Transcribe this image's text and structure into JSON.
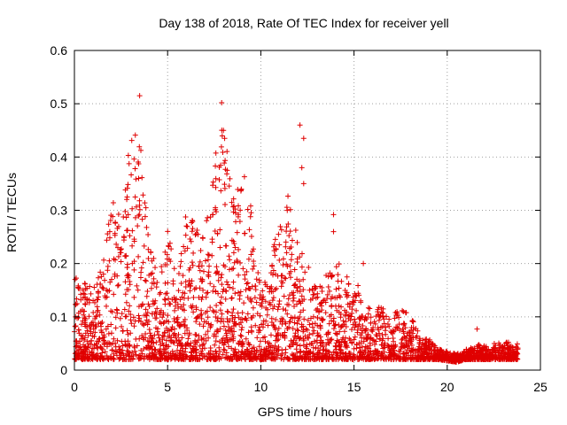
{
  "chart_data": {
    "type": "scatter",
    "title": "Day 138 of 2018, Rate Of TEC Index for receiver yell",
    "xlabel": "GPS time / hours",
    "ylabel": "ROTI / TECUs",
    "xlim": [
      0,
      25
    ],
    "ylim": [
      0,
      0.6
    ],
    "xticks": [
      0,
      5,
      10,
      15,
      20,
      25
    ],
    "xtick_labels": [
      "0",
      "5",
      "10",
      "15",
      "20",
      "25"
    ],
    "yticks": [
      0,
      0.1,
      0.2,
      0.3,
      0.4,
      0.5,
      0.6
    ],
    "ytick_labels": [
      "0",
      "0.1",
      "0.2",
      "0.3",
      "0.4",
      "0.5",
      "0.6"
    ],
    "grid": true,
    "marker": "+",
    "marker_color": "#e00000",
    "series": [
      {
        "name": "ROTI",
        "envelope": {
          "x": [
            0,
            0.5,
            1,
            1.5,
            2,
            2.5,
            3,
            3.2,
            3.5,
            4,
            4.5,
            5,
            5.5,
            6,
            6.5,
            7,
            7.5,
            7.8,
            8,
            8.5,
            9,
            9.5,
            10,
            10.5,
            11,
            11.5,
            12,
            12.5,
            13,
            13.5,
            14,
            14.5,
            15,
            15.5,
            16,
            16.5,
            17,
            17.5,
            18,
            18.5,
            19,
            19.5,
            20,
            20.5,
            21,
            21.5,
            22,
            22.5,
            23,
            23.5,
            23.8
          ],
          "y_max": [
            0.18,
            0.17,
            0.15,
            0.2,
            0.33,
            0.3,
            0.45,
            0.44,
            0.46,
            0.25,
            0.17,
            0.27,
            0.17,
            0.3,
            0.28,
            0.25,
            0.42,
            0.5,
            0.46,
            0.33,
            0.4,
            0.3,
            0.15,
            0.2,
            0.3,
            0.33,
            0.25,
            0.2,
            0.15,
            0.18,
            0.22,
            0.17,
            0.2,
            0.12,
            0.12,
            0.12,
            0.1,
            0.12,
            0.11,
            0.07,
            0.06,
            0.04,
            0.035,
            0.03,
            0.04,
            0.05,
            0.045,
            0.05,
            0.055,
            0.05,
            0.05
          ]
        },
        "outliers": [
          {
            "x": 3.5,
            "y": 0.515
          },
          {
            "x": 7.9,
            "y": 0.502
          },
          {
            "x": 12.1,
            "y": 0.46
          },
          {
            "x": 12.3,
            "y": 0.435
          },
          {
            "x": 12.2,
            "y": 0.38
          },
          {
            "x": 12.3,
            "y": 0.35
          },
          {
            "x": 13.9,
            "y": 0.292
          },
          {
            "x": 13.9,
            "y": 0.26
          },
          {
            "x": 15.5,
            "y": 0.2
          },
          {
            "x": 21.6,
            "y": 0.077
          }
        ],
        "n_points": 3200
      }
    ]
  }
}
